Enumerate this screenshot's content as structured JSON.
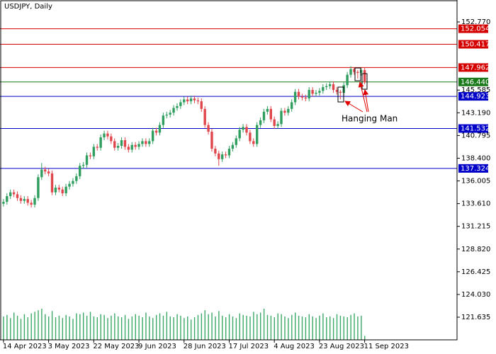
{
  "chart_data": {
    "type": "candlestick",
    "title": "USDJPY, Daily",
    "open": [
      133.6,
      133.8,
      134.4,
      134.8,
      134.6,
      134.2,
      133.9,
      134.1,
      133.7,
      133.5,
      134.2,
      136.4,
      137.2,
      137.0,
      136.8,
      134.8,
      135.3,
      135.1,
      134.7,
      135.4,
      135.7,
      136.0,
      136.5,
      137.6,
      137.7,
      138.7,
      138.6,
      139.6,
      139.5,
      140.6,
      141.0,
      140.7,
      140.2,
      139.5,
      139.7,
      140.3,
      139.6,
      139.3,
      139.8,
      139.6,
      139.9,
      140.2,
      139.9,
      140.2,
      141.3,
      141.1,
      141.9,
      142.9,
      143.0,
      143.2,
      143.7,
      143.9,
      144.3,
      144.6,
      144.4,
      144.7,
      144.5,
      144.4,
      143.6,
      141.9,
      141.2,
      139.4,
      138.9,
      138.3,
      138.8,
      138.7,
      139.4,
      139.8,
      140.5,
      141.4,
      141.7,
      141.1,
      140.2,
      139.9,
      141.9,
      142.4,
      143.3,
      143.6,
      142.5,
      141.8,
      142.0,
      143.4,
      143.2,
      143.6,
      144.3,
      145.4,
      144.9,
      144.8,
      144.7,
      145.6,
      145.2,
      145.3,
      145.5,
      145.9,
      146.0,
      146.2,
      145.6,
      145.4,
      145.3,
      146.1,
      147.2,
      147.8,
      147.5,
      147.4,
      147.7
    ],
    "high": [
      134.1,
      134.7,
      135.1,
      135.1,
      134.9,
      134.5,
      134.4,
      134.4,
      134.0,
      134.5,
      136.7,
      137.9,
      137.5,
      137.3,
      137.1,
      135.6,
      135.6,
      135.4,
      135.7,
      136.0,
      136.3,
      136.8,
      137.9,
      138.0,
      139.0,
      139.0,
      139.9,
      139.9,
      140.9,
      141.3,
      141.3,
      141.0,
      140.5,
      140.0,
      140.6,
      140.6,
      139.9,
      140.1,
      140.1,
      140.2,
      140.5,
      140.5,
      140.5,
      141.6,
      141.6,
      142.2,
      143.2,
      143.3,
      143.5,
      144.0,
      144.2,
      144.6,
      144.9,
      144.9,
      145.0,
      145.0,
      144.8,
      144.7,
      143.9,
      142.2,
      141.5,
      139.7,
      139.2,
      139.1,
      139.1,
      139.7,
      140.1,
      140.8,
      141.7,
      142.0,
      142.0,
      141.4,
      140.5,
      142.2,
      142.7,
      143.6,
      143.9,
      143.9,
      142.8,
      142.3,
      143.7,
      143.7,
      143.9,
      144.6,
      145.7,
      145.7,
      145.2,
      145.1,
      145.9,
      145.9,
      145.6,
      145.8,
      146.2,
      146.3,
      146.5,
      146.5,
      145.9,
      145.6,
      146.4,
      147.5,
      148.1,
      148.0,
      147.7,
      147.9,
      148.0
    ],
    "low": [
      133.3,
      133.5,
      134.1,
      134.3,
      133.9,
      133.6,
      133.6,
      133.4,
      133.2,
      133.2,
      133.9,
      136.1,
      136.7,
      136.5,
      134.5,
      134.5,
      134.8,
      134.4,
      134.4,
      135.1,
      135.4,
      135.7,
      136.2,
      137.3,
      137.4,
      138.3,
      138.3,
      139.2,
      139.2,
      140.3,
      140.4,
      139.9,
      139.2,
      139.2,
      139.4,
      139.3,
      139.0,
      139.0,
      139.3,
      139.3,
      139.6,
      139.6,
      139.6,
      139.9,
      140.8,
      140.8,
      141.6,
      142.6,
      142.7,
      142.9,
      143.4,
      143.6,
      144.0,
      144.1,
      144.1,
      144.2,
      144.1,
      143.3,
      141.6,
      140.9,
      139.1,
      138.6,
      137.6,
      138.0,
      138.4,
      138.4,
      139.1,
      139.5,
      140.2,
      141.1,
      140.8,
      139.9,
      139.6,
      139.6,
      141.6,
      142.1,
      143.0,
      142.2,
      141.5,
      141.5,
      141.7,
      142.9,
      142.9,
      143.3,
      144.0,
      144.6,
      144.5,
      144.4,
      144.4,
      144.9,
      144.9,
      145.0,
      145.2,
      145.6,
      145.7,
      145.3,
      145.1,
      144.6,
      145.0,
      145.8,
      146.9,
      147.2,
      146.8,
      147.1,
      146.2
    ],
    "close": [
      133.8,
      134.4,
      134.8,
      134.6,
      134.2,
      133.9,
      134.1,
      133.7,
      133.5,
      134.2,
      136.4,
      137.2,
      137.0,
      136.8,
      134.8,
      135.3,
      135.1,
      134.7,
      135.4,
      135.7,
      136.0,
      136.5,
      137.6,
      137.7,
      138.7,
      138.6,
      139.6,
      139.5,
      140.6,
      141.0,
      140.7,
      140.2,
      139.5,
      139.7,
      140.3,
      139.6,
      139.3,
      139.8,
      139.6,
      139.9,
      140.2,
      139.9,
      140.2,
      141.3,
      141.1,
      141.9,
      142.9,
      143.0,
      143.2,
      143.7,
      143.9,
      144.3,
      144.6,
      144.4,
      144.7,
      144.5,
      144.4,
      143.6,
      141.9,
      141.2,
      139.4,
      138.9,
      138.3,
      138.8,
      138.7,
      139.4,
      139.8,
      140.5,
      141.4,
      141.7,
      141.1,
      140.2,
      139.9,
      141.9,
      142.4,
      143.3,
      143.6,
      142.5,
      141.8,
      142.0,
      143.4,
      143.2,
      143.6,
      144.3,
      145.4,
      144.9,
      144.8,
      144.7,
      145.6,
      145.2,
      145.3,
      145.5,
      145.9,
      146.0,
      146.2,
      145.6,
      145.4,
      145.3,
      146.1,
      147.2,
      147.8,
      147.5,
      147.4,
      147.7,
      146.4
    ],
    "volume": [
      30,
      32,
      28,
      35,
      31,
      27,
      33,
      29,
      34,
      36,
      38,
      40,
      33,
      30,
      37,
      29,
      31,
      28,
      32,
      30,
      27,
      34,
      33,
      35,
      31,
      36,
      30,
      29,
      33,
      32,
      28,
      31,
      34,
      30,
      29,
      32,
      27,
      30,
      33,
      31,
      29,
      35,
      30,
      28,
      32,
      34,
      31,
      36,
      30,
      29,
      33,
      31,
      28,
      30,
      26,
      29,
      32,
      34,
      38,
      33,
      35,
      30,
      37,
      31,
      29,
      33,
      30,
      28,
      34,
      32,
      31,
      30,
      36,
      33,
      35,
      40,
      32,
      31,
      29,
      34,
      33,
      30,
      28,
      32,
      35,
      31,
      30,
      29,
      33,
      30,
      28,
      31,
      34,
      29,
      30,
      28,
      33,
      31,
      30,
      29,
      32,
      34,
      30,
      31,
      5
    ],
    "up_color": "#2f9e5f",
    "down_color": "#e0474c",
    "volume_color": "#3aa866",
    "xlim": [
      -1,
      130.6
    ],
    "xticks": [
      {
        "value": 0,
        "label": "14 Apr 2023"
      },
      {
        "value": 13,
        "label": "3 May 2023"
      },
      {
        "value": 26,
        "label": "22 May 2023"
      },
      {
        "value": 39,
        "label": "9 Jun 2023"
      },
      {
        "value": 52,
        "label": "28 Jun 2023"
      },
      {
        "value": 65,
        "label": "17 Jul 2023"
      },
      {
        "value": 78,
        "label": "4 Aug 2023"
      },
      {
        "value": 91,
        "label": "23 Aug 2023"
      },
      {
        "value": 104,
        "label": "11 Sep 2023"
      }
    ],
    "ylim": [
      119.245,
      155.085
    ],
    "yticks": [
      {
        "value": 152.77,
        "label": "152.770"
      },
      {
        "value": 145.585,
        "label": "145.585"
      },
      {
        "value": 143.19,
        "label": "143.190"
      },
      {
        "value": 140.795,
        "label": "140.795"
      },
      {
        "value": 138.4,
        "label": "138.400"
      },
      {
        "value": 136.005,
        "label": "136.005"
      },
      {
        "value": 133.61,
        "label": "133.610"
      },
      {
        "value": 131.215,
        "label": "131.215"
      },
      {
        "value": 128.82,
        "label": "128.820"
      },
      {
        "value": 126.425,
        "label": "126.425"
      },
      {
        "value": 124.03,
        "label": "124.030"
      },
      {
        "value": 121.635,
        "label": "121.635"
      }
    ],
    "levels": [
      {
        "value": 152.054,
        "label": "152.054",
        "color": "#d40000"
      },
      {
        "value": 150.417,
        "label": "150.417",
        "color": "#d40000"
      },
      {
        "value": 147.962,
        "label": "147.962",
        "color": "#d40000"
      },
      {
        "value": 146.44,
        "label": "146.440",
        "color": "#1a7a1a"
      },
      {
        "value": 144.923,
        "label": "144.923",
        "color": "#0000c8"
      },
      {
        "value": 141.532,
        "label": "141.532",
        "color": "#0000c8"
      },
      {
        "value": 137.324,
        "label": "137.324",
        "color": "#0000c8"
      }
    ],
    "annotation": "Hanging Man"
  }
}
